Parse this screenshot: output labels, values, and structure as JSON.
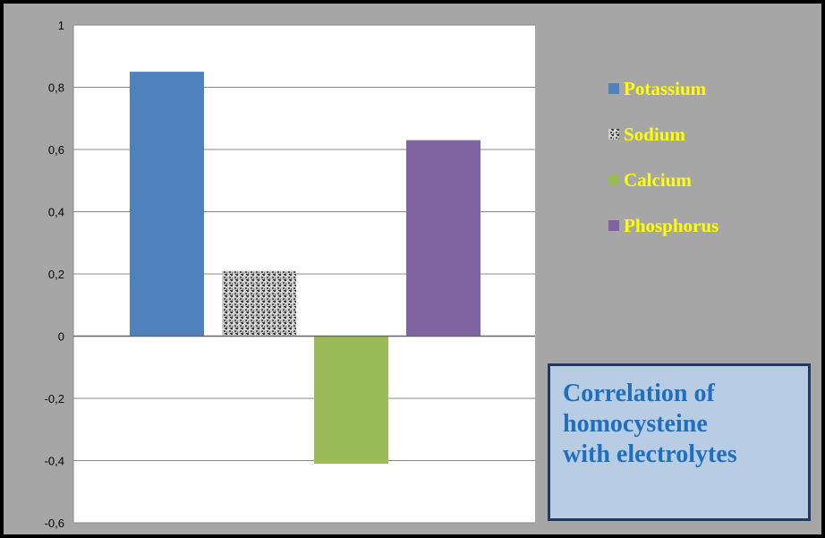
{
  "chart_data": {
    "type": "bar",
    "categories": [
      "Potassium",
      "Sodium",
      "Calcium",
      "Phosphorus"
    ],
    "values": [
      0.85,
      0.21,
      -0.41,
      0.63
    ],
    "colors": [
      "#4f81bd",
      "#8c8c8c",
      "#9bbb59",
      "#8064a2"
    ],
    "ylim": [
      -0.6,
      1
    ],
    "yticks": [
      1,
      0.8,
      0.6,
      0.4,
      0.2,
      0,
      -0.2,
      -0.4,
      -0.6
    ],
    "ytick_labels": [
      "1",
      "0,8",
      "0,6",
      "0,4",
      "0,2",
      "0",
      "-0,2",
      "-0,4",
      "-0,6"
    ],
    "grid": true,
    "legend_position": "right",
    "legend": [
      "Potassium",
      "Sodium",
      "Calcium",
      "Phosphorus"
    ],
    "title_lines": [
      "Correlation of",
      "homocysteine",
      "with electrolytes"
    ]
  }
}
